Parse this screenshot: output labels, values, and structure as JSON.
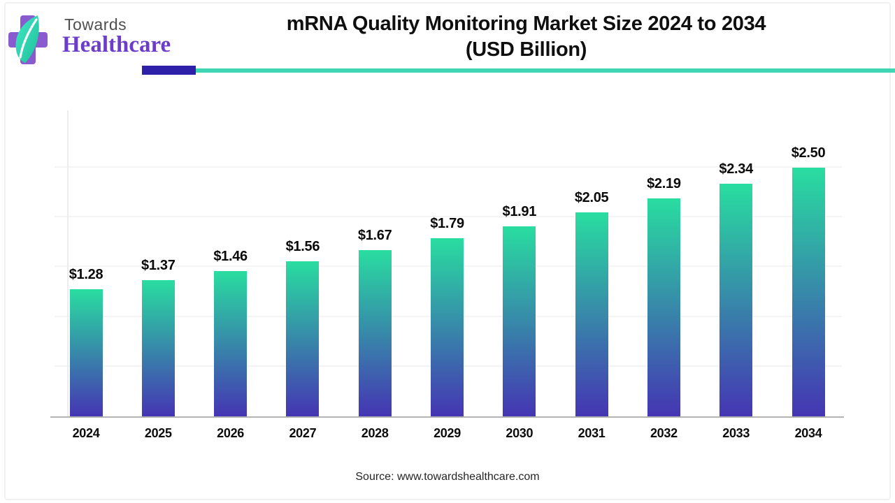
{
  "header": {
    "brand_top": "Towards",
    "brand_bottom": "Healthcare",
    "title_line1": "mRNA Quality Monitoring Market Size 2024 to 2034",
    "title_line2": "(USD Billion)"
  },
  "chart_data": {
    "type": "bar",
    "title": "mRNA Quality Monitoring Market Size 2024 to 2034 (USD Billion)",
    "categories": [
      "2024",
      "2025",
      "2026",
      "2027",
      "2028",
      "2029",
      "2030",
      "2031",
      "2032",
      "2033",
      "2034"
    ],
    "values": [
      1.28,
      1.37,
      1.46,
      1.56,
      1.67,
      1.79,
      1.91,
      2.05,
      2.19,
      2.34,
      2.5
    ],
    "value_labels": [
      "$1.28",
      "$1.37",
      "$1.46",
      "$1.56",
      "$1.67",
      "$1.79",
      "$1.91",
      "$2.05",
      "$2.19",
      "$2.34",
      "$2.50"
    ],
    "xlabel": "",
    "ylabel": "",
    "ylim": [
      0,
      3.13
    ],
    "gridline_step": 0.5,
    "grid": true,
    "legend": "none",
    "bar_gradient_top": "#29dda0",
    "bar_gradient_bottom": "#4535b3"
  },
  "accent": {
    "underline_purple": "#2e20a8",
    "underline_teal": "#3fd6b3",
    "logo_cross_purple": "#8a5bce",
    "logo_leaf_dark": "#1fbf9a",
    "logo_leaf_light": "#42e8c6",
    "brand_top_color": "#4f4f4f",
    "brand_bottom_color": "#6b3ec9"
  },
  "footer": {
    "source": "Source: www.towardshealthcare.com"
  }
}
